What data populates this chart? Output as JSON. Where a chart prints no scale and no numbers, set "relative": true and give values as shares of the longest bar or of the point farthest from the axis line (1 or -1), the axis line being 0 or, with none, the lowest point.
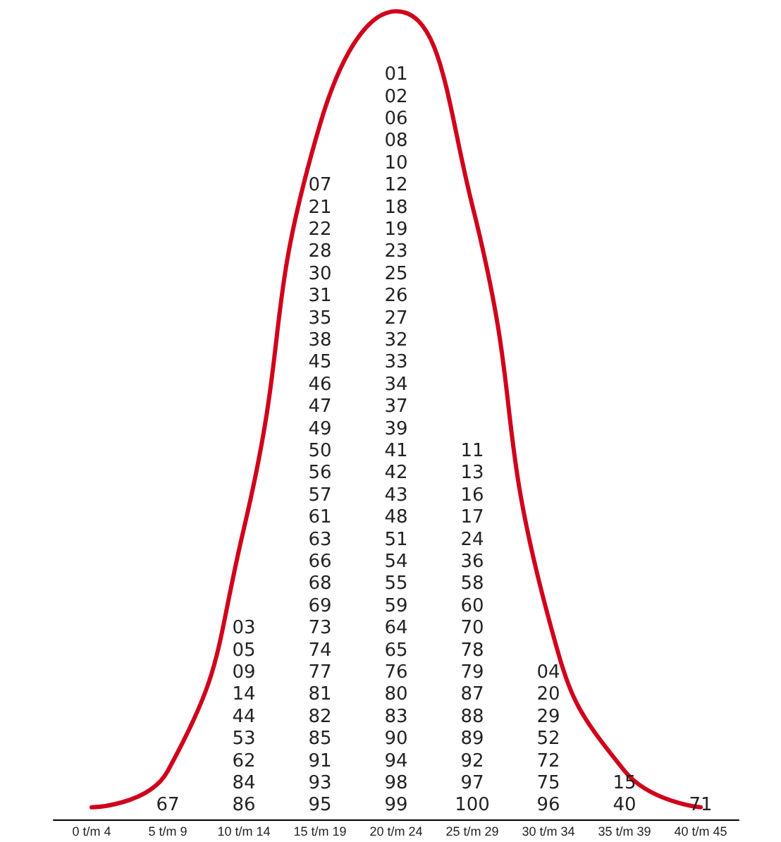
{
  "chart_data": {
    "type": "line",
    "relative": true,
    "marker": "none",
    "line_style": "solid",
    "categories": [
      "0 t/m 4",
      "5 t/m 9",
      "10 t/m 14",
      "15 t/m 19",
      "20 t/m 24",
      "25 t/m 29",
      "30 t/m 34",
      "35 t/m 39",
      "40 t/m 45"
    ],
    "series": [
      {
        "color": "#d0021b",
        "values": [
          0.015,
          0.06,
          0.36,
          0.86,
          1,
          0.76,
          0.25,
          0.06,
          0.015
        ]
      }
    ],
    "annotations": [
      "67",
      "03\n05\n09\n14\n44\n53\n62\n84\n86",
      "07\n21\n22\n28\n30\n31\n35\n38\n45\n46\n47\n49\n50\n56\n57\n61\n63\n66\n68\n69\n73\n74\n77\n81\n82\n85\n91\n93\n95",
      "01\n02\n06\n08\n10\n12\n18\n19\n23\n25\n26\n27\n32\n33\n34\n37\n39\n41\n42\n43\n48\n51\n54\n55\n59\n64\n65\n76\n80\n83\n90\n94\n98\n99",
      "11\n13\n16\n17\n24\n36\n58\n60\n70\n78\n79\n87\n88\n89\n92\n97\n100",
      "04\n20\n29\n52\n72\n75\n96",
      "15\n40",
      "71"
    ]
  }
}
